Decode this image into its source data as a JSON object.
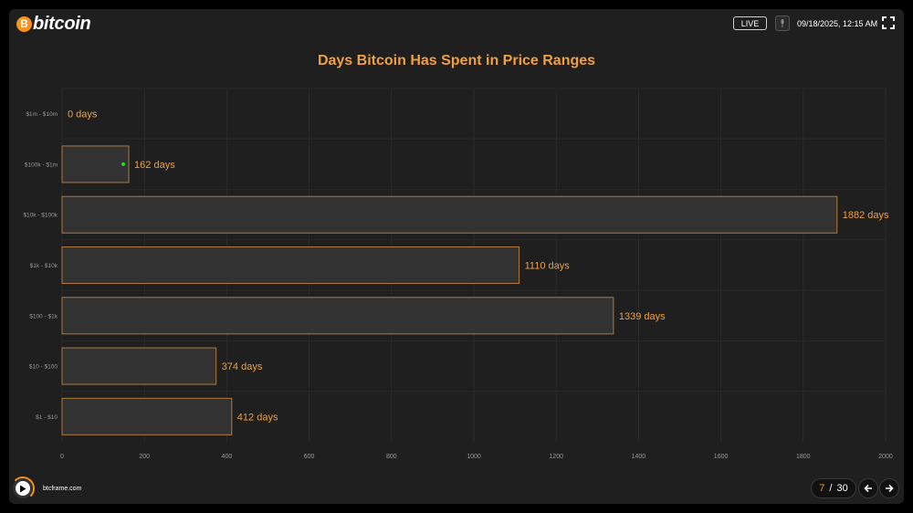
{
  "header": {
    "brand": "bitcoin",
    "brand_coin": "B",
    "live_label": "LIVE",
    "datetime": "09/18/2025, 12:15 AM"
  },
  "footer": {
    "site": "btcframe.com",
    "page_current": "7",
    "page_separator": "/",
    "page_total": "30"
  },
  "icons": [
    "bitcoin-logo-icon",
    "mic-icon",
    "fullscreen-icon",
    "play-icon",
    "arrow-left-icon",
    "arrow-right-icon"
  ],
  "colors": {
    "accent": "#f7931a",
    "title": "#f0a040",
    "bar_fill": "#323232",
    "bar_stroke": "#b07a3a",
    "marker": "#22dd22"
  },
  "chart_data": {
    "type": "bar",
    "orientation": "horizontal",
    "title": "Days Bitcoin Has Spent in Price Ranges",
    "categories": [
      "$1m - $10m",
      "$100k - $1m",
      "$10k - $100k",
      "$1k - $10k",
      "$100 - $1k",
      "$10 - $100",
      "$1 - $10"
    ],
    "values": [
      0,
      162,
      1882,
      1110,
      1339,
      374,
      412
    ],
    "value_labels": [
      "0 days",
      "162 days",
      "1882 days",
      "1110 days",
      "1339 days",
      "374 days",
      "412 days"
    ],
    "xticks": [
      "0",
      "200",
      "400",
      "600",
      "800",
      "1000",
      "1200",
      "1400",
      "1600",
      "1800",
      "2000"
    ],
    "xlim": [
      0,
      2000
    ],
    "grid": true,
    "current_range_marker": "$100k - $1m"
  }
}
